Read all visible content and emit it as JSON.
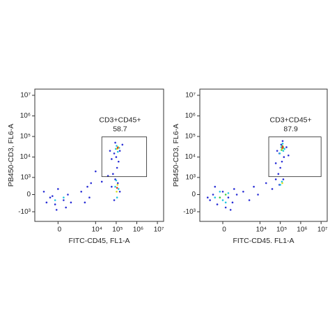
{
  "chart_data": [
    {
      "type": "scatter",
      "xscale": "biexponential",
      "yscale": "biexponential",
      "xlabel": "FITC-CD45, FL1-A",
      "ylabel": "PB450-CD3, FL6-A",
      "xlim": [
        -2000,
        20000000
      ],
      "ylim": [
        -3000,
        20000000
      ],
      "xticks": [
        {
          "value": 0,
          "label": "0"
        },
        {
          "value": 10000,
          "label": "10⁴"
        },
        {
          "value": 100000,
          "label": "10⁵"
        },
        {
          "value": 1000000,
          "label": "10⁶"
        },
        {
          "value": 10000000,
          "label": "10⁷"
        }
      ],
      "yticks": [
        {
          "value": -1000,
          "label": "-10³"
        },
        {
          "value": 0,
          "label": "0"
        },
        {
          "value": 1000,
          "label": "10³"
        },
        {
          "value": 10000,
          "label": "10⁴"
        },
        {
          "value": 100000,
          "label": "10⁵"
        },
        {
          "value": 1000000,
          "label": "10⁶"
        },
        {
          "value": 10000000,
          "label": "10⁷"
        }
      ],
      "gates": [
        {
          "name": "CD3+CD45+",
          "percent": 58.7,
          "x": [
            20000,
            3000000
          ],
          "y": [
            1100,
            95000
          ]
        }
      ],
      "series": [
        {
          "color": "#2a2fd6",
          "x": [
            -500,
            -300,
            -100,
            200,
            400,
            600,
            -700,
            0,
            300,
            -200,
            2000,
            4000,
            5000,
            6000,
            3000,
            60000,
            80000,
            120000,
            150000,
            90000,
            70000,
            110000,
            130000,
            100000,
            80000,
            150000,
            60000,
            200000,
            90000,
            120000,
            10000,
            20000,
            40000,
            -50,
            50000
          ],
          "y": [
            -300,
            -100,
            -400,
            -200,
            0,
            -300,
            100,
            200,
            -600,
            -50,
            100,
            300,
            -100,
            500,
            -300,
            300,
            -200,
            500,
            100,
            800,
            1500,
            3000,
            6000,
            10000,
            15000,
            20000,
            8000,
            40000,
            50000,
            30000,
            2000,
            600,
            1200,
            -800,
            20000
          ]
        },
        {
          "color": "#22c6e0",
          "x": [
            90000,
            110000,
            100000,
            130000,
            95000,
            120000,
            105000,
            140000,
            -100,
            200
          ],
          "y": [
            300,
            -100,
            700,
            200,
            25000,
            18000,
            35000,
            28000,
            -200,
            -100
          ]
        },
        {
          "color": "#d8e020",
          "x": [
            105000,
            115000,
            110000,
            125000
          ],
          "y": [
            100,
            400,
            25000,
            30000
          ]
        },
        {
          "color": "#e03020",
          "x": [
            110000,
            118000
          ],
          "y": [
            250,
            28000
          ]
        }
      ]
    },
    {
      "type": "scatter",
      "xscale": "biexponential",
      "yscale": "biexponential",
      "xlabel": "FITC-CD45. FL1-A",
      "ylabel": "PB450-CD3, FL6-A",
      "xlim": [
        -2000,
        20000000
      ],
      "ylim": [
        -3000,
        20000000
      ],
      "xticks": [
        {
          "value": 0,
          "label": "0"
        },
        {
          "value": 10000,
          "label": "10⁴"
        },
        {
          "value": 100000,
          "label": "10⁵"
        },
        {
          "value": 1000000,
          "label": "10⁶"
        },
        {
          "value": 10000000,
          "label": "10⁷"
        }
      ],
      "yticks": [
        {
          "value": -1000,
          "label": "-10³"
        },
        {
          "value": 0,
          "label": "0"
        },
        {
          "value": 1000,
          "label": "10³"
        },
        {
          "value": 10000,
          "label": "10⁴"
        },
        {
          "value": 100000,
          "label": "10⁵"
        },
        {
          "value": 1000000,
          "label": "10⁶"
        },
        {
          "value": 10000000,
          "label": "10⁷"
        }
      ],
      "gates": [
        {
          "name": "CD3+CD45+",
          "percent": 87.9,
          "x": [
            27000,
            10000000
          ],
          "y": [
            1100,
            95000
          ]
        }
      ],
      "series": [
        {
          "color": "#2a2fd6",
          "x": [
            -600,
            -400,
            -200,
            0,
            200,
            400,
            700,
            -300,
            100,
            500,
            -800,
            300,
            1500,
            3000,
            5000,
            8000,
            20000,
            40000,
            60000,
            80000,
            100000,
            120000,
            150000,
            90000,
            70000,
            110000,
            130000,
            200000,
            60000,
            90000,
            140000,
            250000
          ],
          "y": [
            -200,
            0,
            -400,
            100,
            -100,
            -300,
            0,
            300,
            -600,
            200,
            -100,
            -800,
            100,
            -200,
            300,
            0,
            500,
            200,
            800,
            1500,
            3000,
            6000,
            10000,
            15000,
            20000,
            40000,
            60000,
            30000,
            5000,
            400,
            800,
            12000
          ]
        },
        {
          "color": "#22c6e0",
          "x": [
            -300,
            0,
            200,
            -100,
            100,
            100000,
            120000,
            140000,
            110000,
            95000,
            160000,
            130000
          ],
          "y": [
            -100,
            -200,
            50,
            100,
            -300,
            400,
            600,
            20000,
            30000,
            15000,
            25000,
            45000
          ]
        },
        {
          "color": "#40d040",
          "x": [
            -100,
            100,
            115000,
            125000,
            140000
          ],
          "y": [
            -100,
            0,
            22000,
            35000,
            28000
          ]
        },
        {
          "color": "#d8e020",
          "x": [
            120000,
            130000,
            125000
          ],
          "y": [
            25000,
            30000,
            500
          ]
        },
        {
          "color": "#e03020",
          "x": [
            125000,
            132000
          ],
          "y": [
            28000,
            32000
          ]
        }
      ]
    }
  ]
}
